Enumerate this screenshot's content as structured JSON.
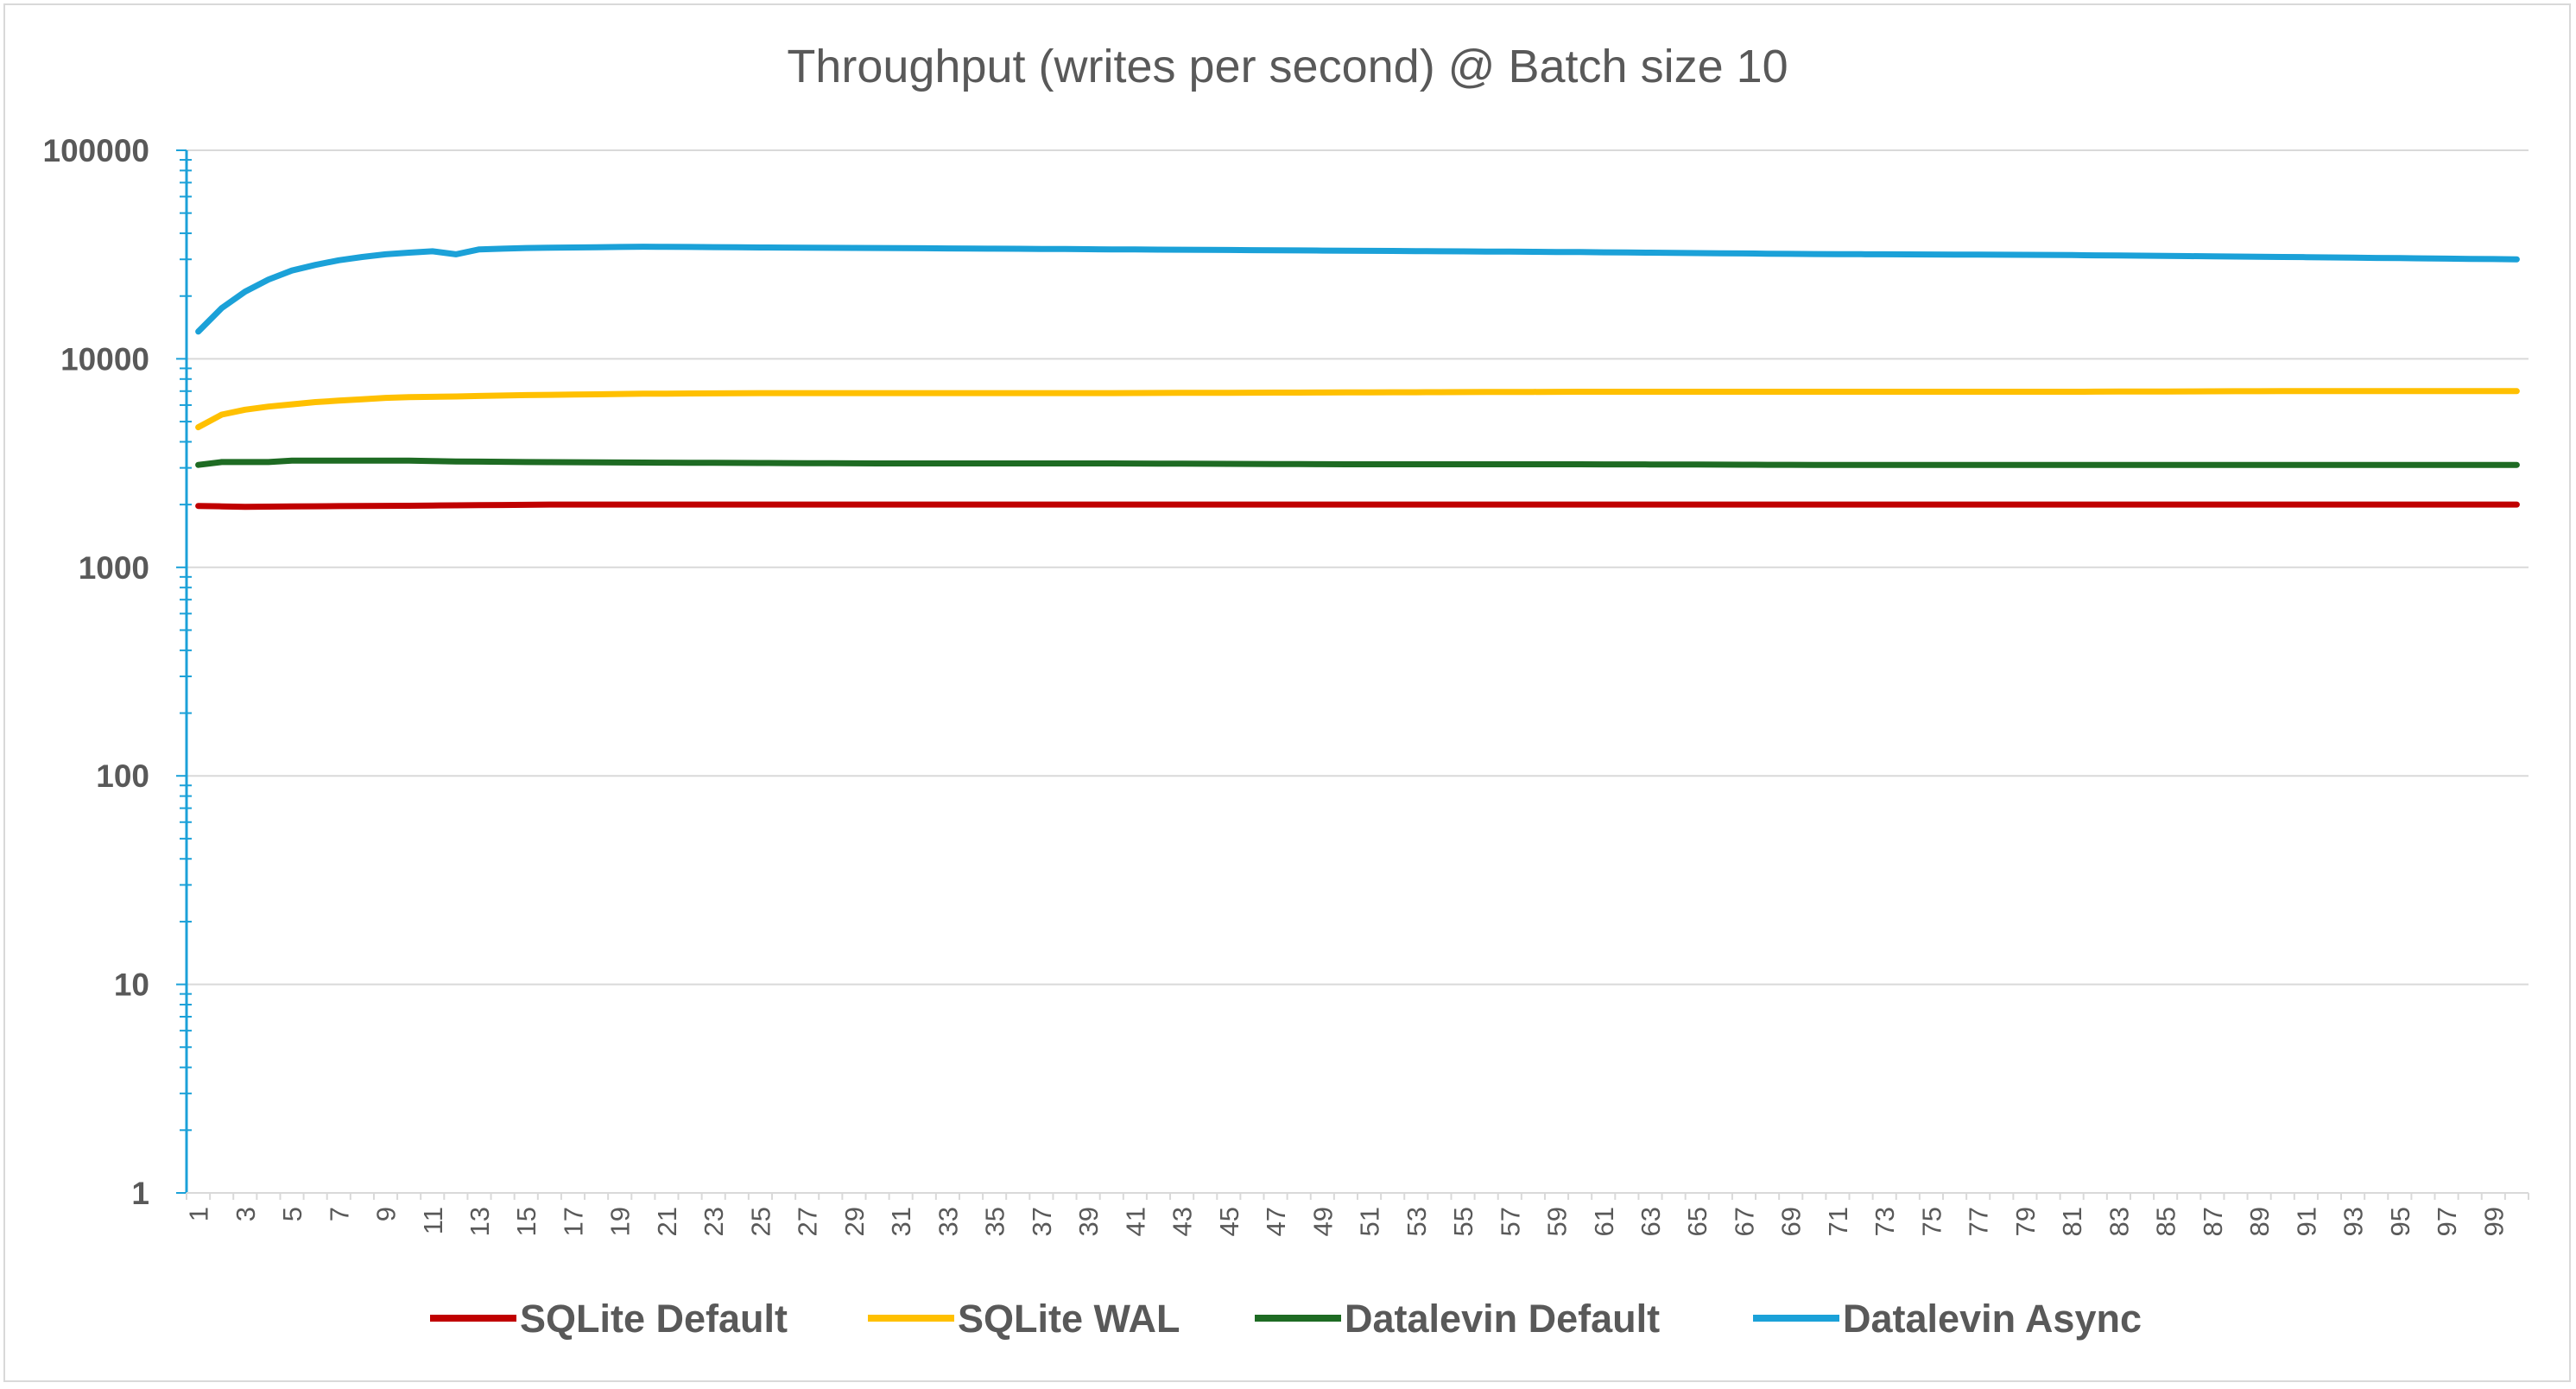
{
  "chart_data": {
    "type": "line",
    "title": "Throughput (writes per second) @ Batch size 10",
    "xlabel": "",
    "ylabel": "",
    "y_scale": "log",
    "ylim": [
      1,
      100000
    ],
    "y_ticks": [
      1,
      10,
      100,
      1000,
      10000,
      100000
    ],
    "y_tick_labels": [
      "1",
      "10",
      "100",
      "1000",
      "10000",
      "100000"
    ],
    "x_range": [
      1,
      100
    ],
    "x_tick_labels": [
      "1",
      "3",
      "5",
      "7",
      "9",
      "11",
      "13",
      "15",
      "17",
      "19",
      "21",
      "23",
      "25",
      "27",
      "29",
      "31",
      "33",
      "35",
      "37",
      "39",
      "41",
      "43",
      "45",
      "47",
      "49",
      "51",
      "53",
      "55",
      "57",
      "59",
      "61",
      "63",
      "65",
      "67",
      "69",
      "71",
      "73",
      "75",
      "77",
      "79",
      "81",
      "83",
      "85",
      "87",
      "89",
      "91",
      "93",
      "95",
      "97",
      "99"
    ],
    "grid": true,
    "legend_position": "bottom",
    "series": [
      {
        "name": "SQLite Default",
        "color": "#c00000",
        "x": [
          1,
          3,
          5,
          10,
          16,
          20,
          40,
          60,
          80,
          100
        ],
        "values": [
          1970,
          1950,
          1960,
          1975,
          2000,
          2000,
          2000,
          2000,
          2000,
          2000
        ]
      },
      {
        "name": "SQLite WAL",
        "color": "#ffc000",
        "x": [
          1,
          2,
          3,
          4,
          5,
          6,
          7,
          8,
          9,
          10,
          12,
          15,
          20,
          25,
          30,
          40,
          50,
          60,
          70,
          80,
          90,
          100
        ],
        "values": [
          4700,
          5400,
          5700,
          5900,
          6050,
          6200,
          6300,
          6400,
          6500,
          6550,
          6600,
          6700,
          6800,
          6850,
          6850,
          6850,
          6900,
          6950,
          6950,
          6950,
          7000,
          7000
        ]
      },
      {
        "name": "Datalevin Default",
        "color": "#1e6b23",
        "x": [
          1,
          2,
          3,
          4,
          5,
          10,
          12,
          15,
          20,
          30,
          40,
          50,
          60,
          70,
          80,
          90,
          100
        ],
        "values": [
          3100,
          3200,
          3200,
          3200,
          3250,
          3250,
          3220,
          3200,
          3180,
          3150,
          3150,
          3120,
          3120,
          3100,
          3100,
          3100,
          3100
        ]
      },
      {
        "name": "Datalevin Async",
        "color": "#1ba1d8",
        "x": [
          1,
          2,
          3,
          4,
          5,
          6,
          7,
          8,
          9,
          10,
          11,
          12,
          13,
          15,
          20,
          25,
          30,
          40,
          50,
          60,
          70,
          80,
          90,
          100
        ],
        "values": [
          13500,
          17500,
          21000,
          24000,
          26500,
          28200,
          29700,
          30800,
          31700,
          32300,
          32800,
          31700,
          33500,
          34000,
          34500,
          34200,
          34000,
          33500,
          33000,
          32500,
          31800,
          31500,
          30800,
          30000
        ]
      }
    ]
  }
}
